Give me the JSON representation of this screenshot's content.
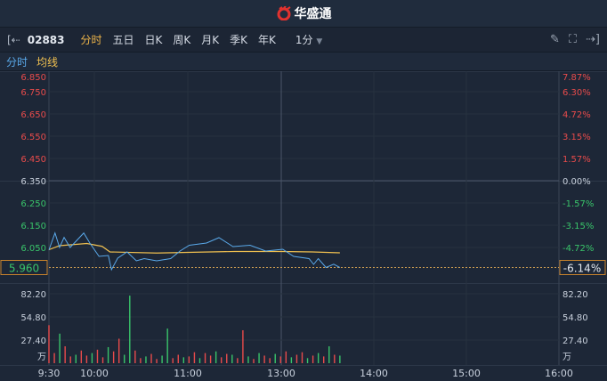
{
  "header": {
    "brand": "华盛通"
  },
  "toolbar": {
    "code": "02883",
    "tabs": [
      "分时",
      "五日",
      "日K",
      "周K",
      "月K",
      "季K",
      "年K"
    ],
    "active": "分时",
    "interval": "1分"
  },
  "legend": {
    "price": "分时",
    "avg": "均线"
  },
  "colors": {
    "up": "#e84b4b",
    "down": "#39c46a",
    "price_line": "#5aa9ea",
    "avg_line": "#f0c050",
    "accent": "#f0b64a"
  },
  "chart": {
    "price_ticks": [
      "6.850",
      "6.750",
      "6.650",
      "6.550",
      "6.450",
      "6.350",
      "6.250",
      "6.150",
      "6.050"
    ],
    "pct_ticks": [
      "7.87%",
      "6.30%",
      "4.72%",
      "3.15%",
      "1.57%",
      "0.00%",
      "-1.57%",
      "-3.15%",
      "-4.72%"
    ],
    "last_price": "5.960",
    "last_pct": "-6.14%",
    "prev_close": 6.35,
    "vol_ticks": [
      "82.20",
      "54.80",
      "27.40"
    ],
    "vol_unit": "万",
    "time_ticks": [
      "9:30",
      "10:00",
      "11:00",
      "13:00",
      "14:00",
      "15:00",
      "16:00"
    ],
    "price": [
      [
        "9:30",
        6.039
      ],
      [
        "9:34",
        6.115
      ],
      [
        "9:37",
        6.05
      ],
      [
        "9:40",
        6.095
      ],
      [
        "9:44",
        6.05
      ],
      [
        "9:53",
        6.115
      ],
      [
        "9:57",
        6.07
      ],
      [
        "10:03",
        6.01
      ],
      [
        "10:09",
        6.014
      ],
      [
        "10:11",
        5.95
      ],
      [
        "10:15",
        6.002
      ],
      [
        "10:21",
        6.03
      ],
      [
        "10:27",
        5.99
      ],
      [
        "10:32",
        6.0
      ],
      [
        "10:40",
        5.99
      ],
      [
        "10:49",
        6.0
      ],
      [
        "10:55",
        6.034
      ],
      [
        "11:01",
        6.06
      ],
      [
        "11:12",
        6.07
      ],
      [
        "11:20",
        6.094
      ],
      [
        "11:29",
        6.054
      ],
      [
        "11:40",
        6.06
      ],
      [
        "11:50",
        6.034
      ],
      [
        "13:01",
        6.042
      ],
      [
        "13:08",
        6.01
      ],
      [
        "13:18",
        6.0
      ],
      [
        "13:21",
        5.974
      ],
      [
        "13:24",
        6.0
      ],
      [
        "13:29",
        5.96
      ],
      [
        "13:34",
        5.975
      ],
      [
        "13:38",
        5.96
      ]
    ],
    "avg": [
      [
        "9:30",
        6.04
      ],
      [
        "9:37",
        6.058
      ],
      [
        "9:55",
        6.068
      ],
      [
        "10:05",
        6.055
      ],
      [
        "10:10",
        6.03
      ],
      [
        "10:40",
        6.025
      ],
      [
        "11:00",
        6.028
      ],
      [
        "11:30",
        6.032
      ],
      [
        "13:00",
        6.032
      ],
      [
        "13:20",
        6.03
      ],
      [
        "13:38",
        6.026
      ]
    ],
    "volume": [
      [
        45,
        "up"
      ],
      [
        12,
        "up"
      ],
      [
        35,
        "down"
      ],
      [
        20,
        "up"
      ],
      [
        8,
        "up"
      ],
      [
        10,
        "down"
      ],
      [
        15,
        "up"
      ],
      [
        9,
        "up"
      ],
      [
        12,
        "down"
      ],
      [
        16,
        "up"
      ],
      [
        7,
        "up"
      ],
      [
        19,
        "down"
      ],
      [
        14,
        "up"
      ],
      [
        29,
        "up"
      ],
      [
        10,
        "down"
      ],
      [
        80,
        "down"
      ],
      [
        15,
        "up"
      ],
      [
        6,
        "up"
      ],
      [
        8,
        "down"
      ],
      [
        11,
        "up"
      ],
      [
        5,
        "up"
      ],
      [
        9,
        "down"
      ],
      [
        41,
        "down"
      ],
      [
        6,
        "up"
      ],
      [
        10,
        "up"
      ],
      [
        7,
        "down"
      ],
      [
        8,
        "up"
      ],
      [
        13,
        "up"
      ],
      [
        6,
        "down"
      ],
      [
        12,
        "up"
      ],
      [
        9,
        "up"
      ],
      [
        14,
        "down"
      ],
      [
        7,
        "up"
      ],
      [
        11,
        "up"
      ],
      [
        10,
        "down"
      ],
      [
        6,
        "up"
      ],
      [
        39,
        "up"
      ],
      [
        8,
        "down"
      ],
      [
        5,
        "up"
      ],
      [
        12,
        "down"
      ],
      [
        9,
        "up"
      ],
      [
        6,
        "up"
      ],
      [
        11,
        "down"
      ],
      [
        8,
        "up"
      ],
      [
        14,
        "up"
      ],
      [
        7,
        "down"
      ],
      [
        10,
        "up"
      ],
      [
        13,
        "up"
      ],
      [
        6,
        "down"
      ],
      [
        9,
        "up"
      ],
      [
        12,
        "down"
      ],
      [
        8,
        "up"
      ],
      [
        20,
        "down"
      ],
      [
        10,
        "up"
      ],
      [
        9,
        "down"
      ]
    ]
  }
}
